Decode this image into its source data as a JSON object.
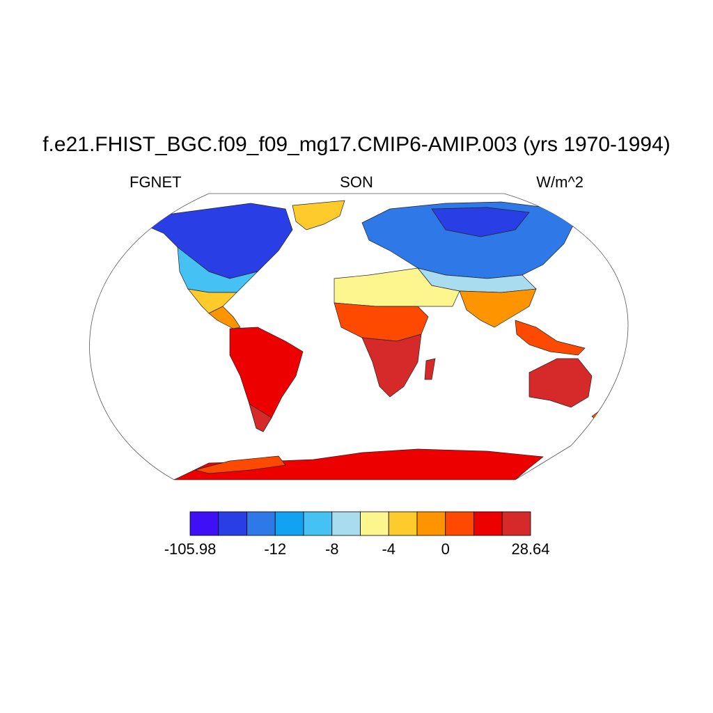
{
  "title": "f.e21.FHIST_BGC.f09_f09_mg17.CMIP6-AMIP.003 (yrs 1970-1994)",
  "left_string": "FGNET",
  "center_string": "SON",
  "right_string": "W/m^2",
  "colorbar": {
    "colors": [
      "#3f0ff5",
      "#2a3ee6",
      "#2f78e8",
      "#12a2f2",
      "#45c2f3",
      "#a9dcef",
      "#fdf58d",
      "#fdcb2b",
      "#fd9400",
      "#fd4a00",
      "#ec0000",
      "#d62a2a"
    ],
    "labels": [
      {
        "text": "-105.98",
        "edge": 0
      },
      {
        "text": "-12",
        "edge": 3
      },
      {
        "text": "-8",
        "edge": 5
      },
      {
        "text": "-4",
        "edge": 7
      },
      {
        "text": "0",
        "edge": 9
      },
      {
        "text": "28.64",
        "edge": 12
      }
    ]
  },
  "map": {
    "projection": "robinson",
    "ocean_color": "#ffffff",
    "outline_color": "#555555"
  }
}
